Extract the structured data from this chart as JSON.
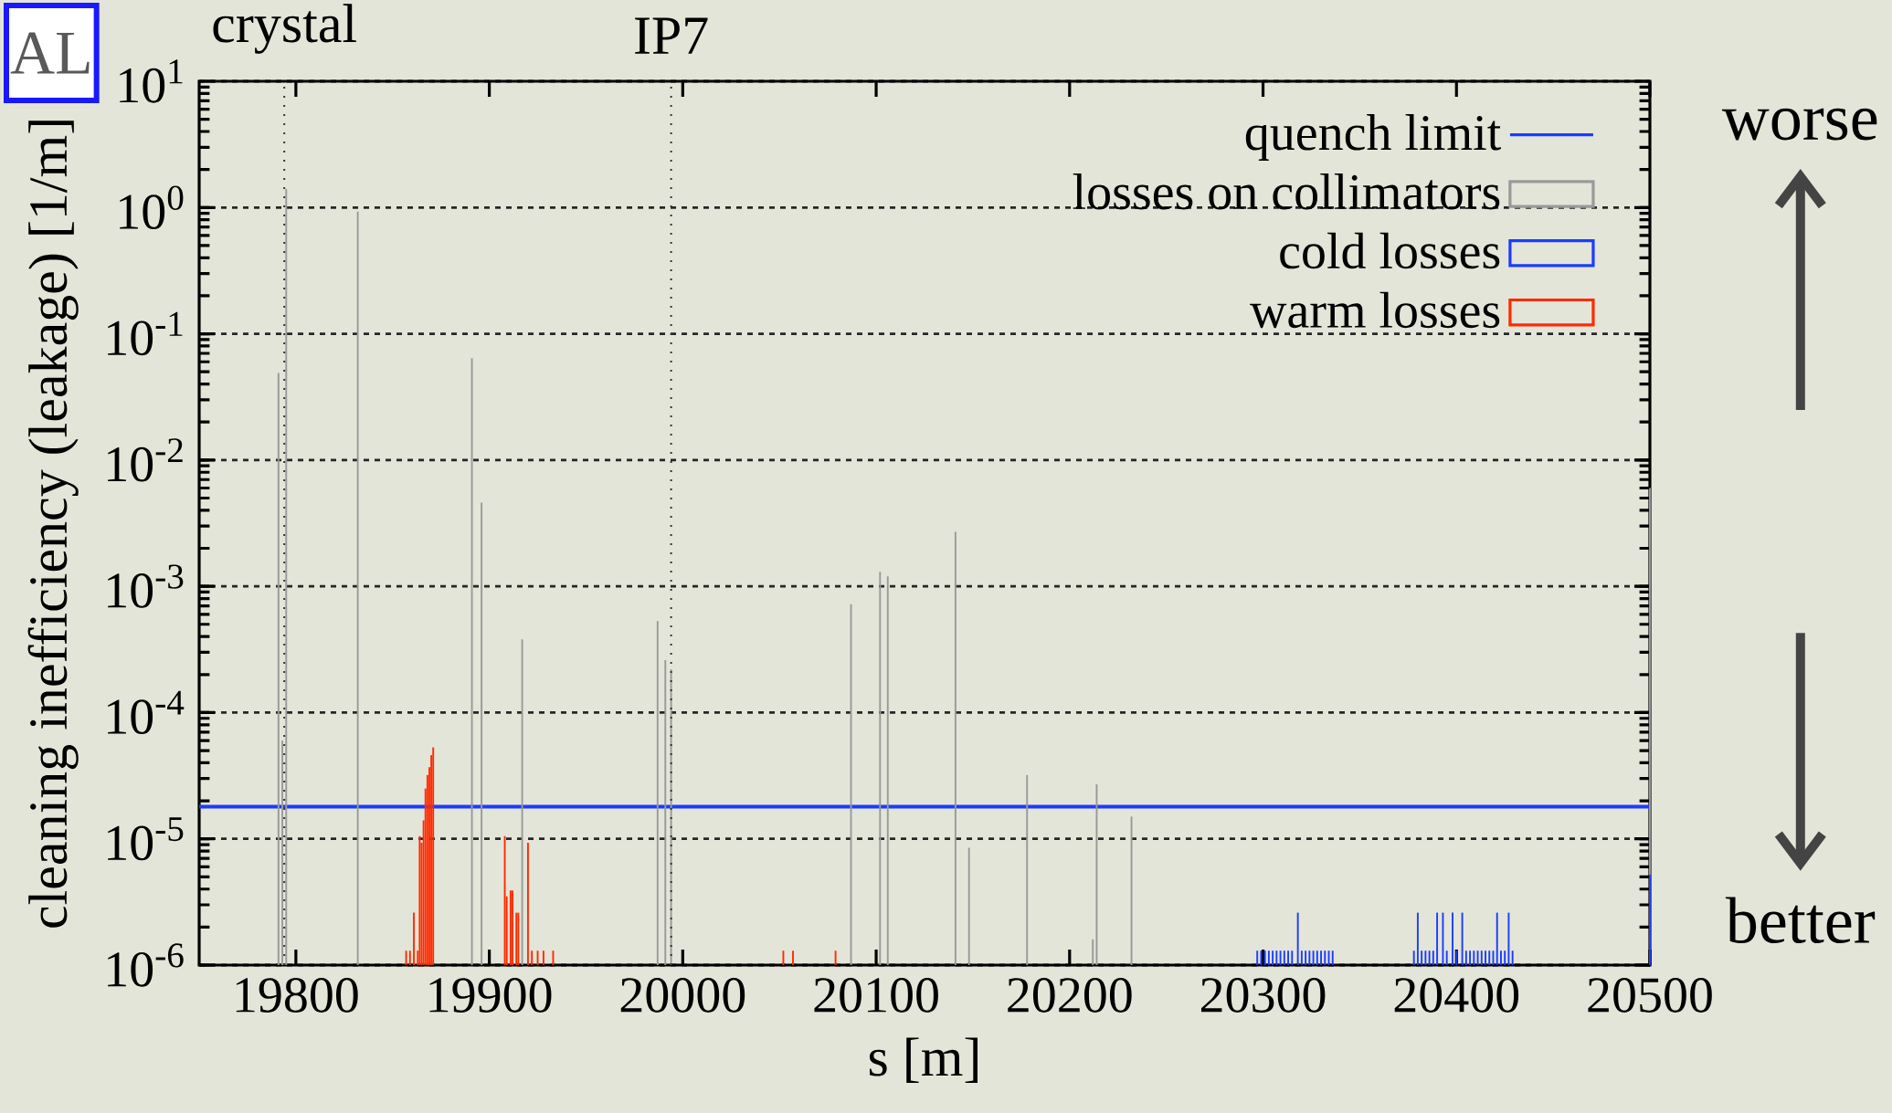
{
  "chart_data": {
    "type": "bar",
    "xlabel": "s [m]",
    "ylabel": "cleaning inefficiency (leakage) [1/m]",
    "log": "y",
    "grid": "y",
    "legend": "top right",
    "xlim": [
      19750,
      20500
    ],
    "xticks": [
      19800,
      19900,
      20000,
      20100,
      20200,
      20300,
      20400,
      20500
    ],
    "ylim": [
      1e-06,
      10
    ],
    "yticks": [
      {
        "value": 1e-06,
        "label": "10$^{-6}$"
      },
      {
        "value": 1e-05,
        "label": "10$^{-5}$"
      },
      {
        "value": 0.0001,
        "label": "10$^{-4}$"
      },
      {
        "value": 0.001,
        "label": "10$^{-3}$"
      },
      {
        "value": 0.01,
        "label": "10$^{-2}$"
      },
      {
        "value": 0.1,
        "label": "10$^{-1}$"
      },
      {
        "value": 1,
        "label": "10$^{0}$"
      },
      {
        "value": 10,
        "label": "10$^{1}$"
      }
    ],
    "ref_lines": [
      {
        "axis": "x",
        "value": 19794,
        "label": "crystal",
        "line_style": "dotted"
      },
      {
        "axis": "x",
        "value": 19994,
        "label": "IP7",
        "line_style": "dotted"
      }
    ],
    "annotations": [
      "worse",
      "better",
      "AL"
    ],
    "series": [
      {
        "name": "quench limit",
        "type": "line",
        "color": "#1a3cff",
        "x": [
          19750,
          20500
        ],
        "values": [
          1.8e-05,
          1.8e-05
        ]
      },
      {
        "name": "losses on collimators",
        "color": "#999999",
        "x": [
          19791,
          19793,
          19795,
          19832,
          19891,
          19896,
          19917,
          19987,
          19991,
          19994,
          20087,
          20102,
          20106,
          20141,
          20148,
          20178,
          20212,
          20214,
          20232,
          20500
        ],
        "values": [
          0.049,
          6e-05,
          1.4,
          0.93,
          0.064,
          0.0046,
          0.00038,
          0.00053,
          0.00026,
          0.00022,
          0.00072,
          0.0013,
          0.0012,
          0.0027,
          8.5e-06,
          3.2e-05,
          1.6e-06,
          2.7e-05,
          1.5e-05,
          0.006
        ]
      },
      {
        "name": "cold losses",
        "color": "#1a3cff",
        "x": [
          20297,
          20299,
          20301,
          20303,
          20305,
          20307,
          20309,
          20311,
          20313,
          20315,
          20318,
          20320,
          20322,
          20324,
          20326,
          20328,
          20330,
          20332,
          20334,
          20336,
          20378,
          20380,
          20382,
          20384,
          20386,
          20388,
          20390,
          20393,
          20395,
          20398,
          20400,
          20403,
          20405,
          20407,
          20409,
          20411,
          20413,
          20415,
          20417,
          20419,
          20421,
          20423,
          20425,
          20427,
          20429,
          20500
        ],
        "values": [
          1.3e-06,
          1.3e-06,
          1.3e-06,
          1.3e-06,
          1.3e-06,
          1.3e-06,
          1.3e-06,
          1.3e-06,
          1.3e-06,
          1.3e-06,
          2.6e-06,
          1.3e-06,
          1.3e-06,
          1.3e-06,
          1.3e-06,
          1.3e-06,
          1.3e-06,
          1.3e-06,
          1.3e-06,
          1.3e-06,
          1.3e-06,
          2.6e-06,
          1.3e-06,
          1.3e-06,
          1.3e-06,
          1.3e-06,
          2.6e-06,
          2.6e-06,
          1.3e-06,
          2.6e-06,
          1.3e-06,
          2.6e-06,
          1.3e-06,
          1.3e-06,
          1.3e-06,
          1.3e-06,
          1.3e-06,
          1.3e-06,
          1.3e-06,
          1.3e-06,
          2.6e-06,
          1.3e-06,
          1.3e-06,
          2.6e-06,
          1.3e-06,
          5.2e-06
        ]
      },
      {
        "name": "warm losses",
        "color": "#ff2a00",
        "x": [
          19857,
          19859,
          19861,
          19863,
          19864,
          19865,
          19866,
          19867,
          19868,
          19869,
          19870,
          19871,
          19908,
          19909,
          19911,
          19912,
          19914,
          19915,
          19920,
          19922,
          19925,
          19928,
          19933,
          20052,
          20057,
          20079
        ],
        "values": [
          1.3e-06,
          1.3e-06,
          2.6e-06,
          1.3e-06,
          1.05e-05,
          9.3e-06,
          1.4e-05,
          2.5e-05,
          3.2e-05,
          3.7e-05,
          4.6e-05,
          5.3e-05,
          1.05e-05,
          3.5e-06,
          3.9e-06,
          3.9e-06,
          2.6e-06,
          2.6e-06,
          9.3e-06,
          1.3e-06,
          1.3e-06,
          1.3e-06,
          1.3e-06,
          1.3e-06,
          1.3e-06,
          1.3e-06
        ]
      }
    ]
  }
}
